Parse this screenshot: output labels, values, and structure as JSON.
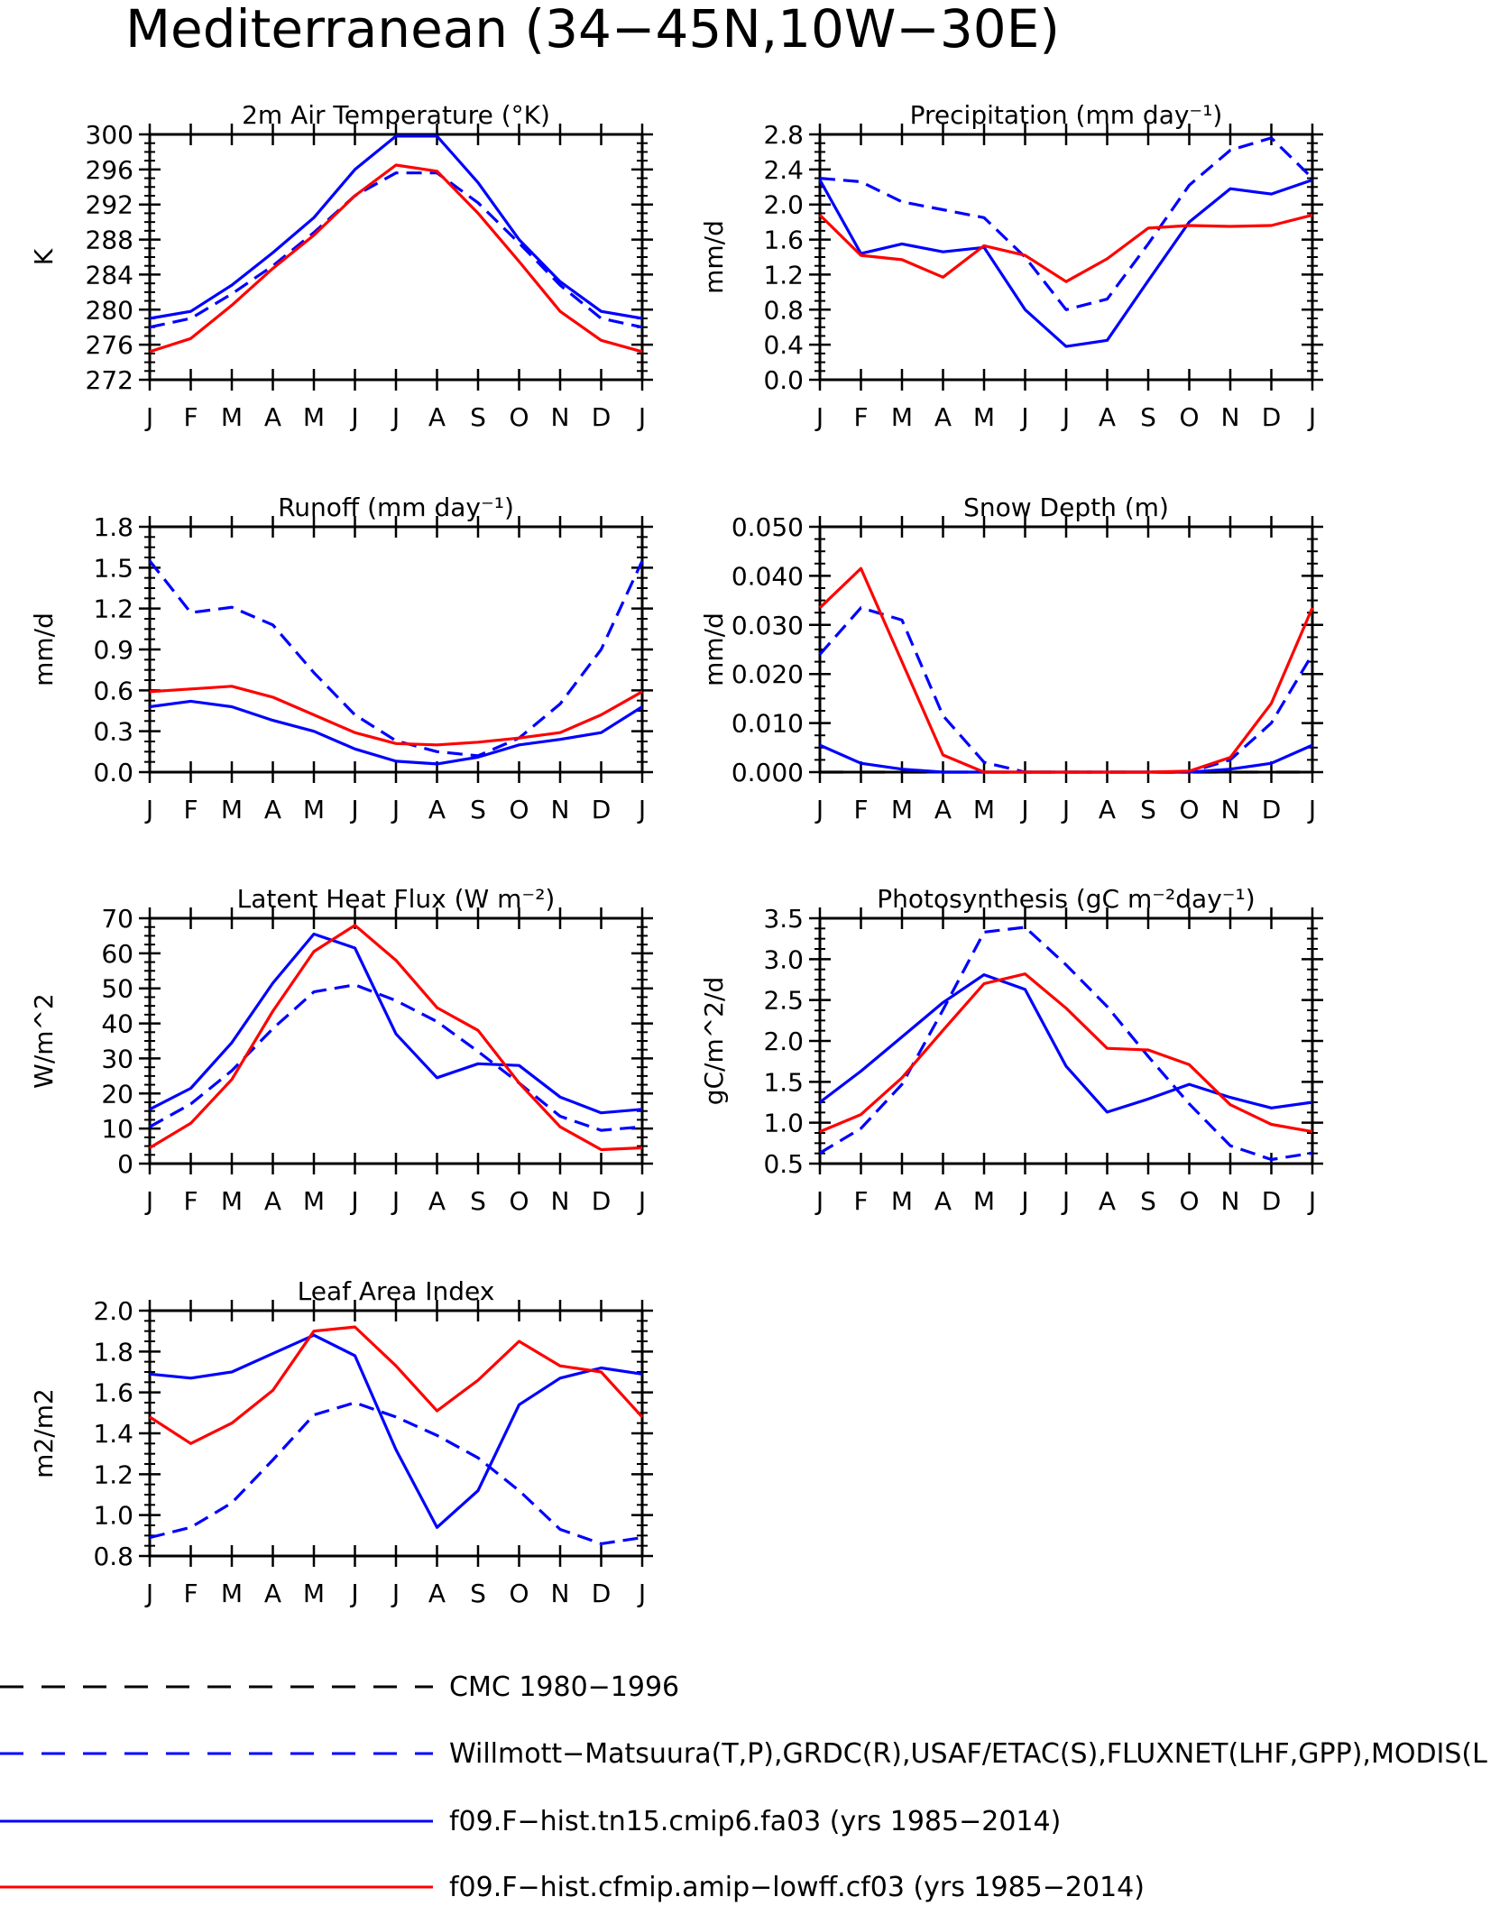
{
  "figure": {
    "title": "Mediterranean (34−45N,10W−30E)",
    "months": [
      "J",
      "F",
      "M",
      "A",
      "M",
      "J",
      "J",
      "A",
      "S",
      "O",
      "N",
      "D",
      "J"
    ]
  },
  "legend": {
    "entries": [
      {
        "label": "CMC 1980−1996",
        "color": "#000000",
        "style": "longdash"
      },
      {
        "label": "Willmott−Matsuura(T,P),GRDC(R),USAF/ETAC(S),FLUXNET(LHF,GPP),MODIS(L",
        "color": "#0000ff",
        "style": "longdash"
      },
      {
        "label": "f09.F−hist.tn15.cmip6.fa03 (yrs 1985−2014)",
        "color": "#0000ff",
        "style": "solid"
      },
      {
        "label": "f09.F−hist.cfmip.amip−lowff.cf03 (yrs 1985−2014)",
        "color": "#ff0000",
        "style": "solid"
      }
    ]
  },
  "chart_data": [
    {
      "type": "line",
      "title": "2m Air Temperature (°K)",
      "ylabel": "K",
      "ylim": [
        272,
        300
      ],
      "yticks": [
        "272",
        "276",
        "280",
        "284",
        "288",
        "292",
        "296",
        "300"
      ],
      "series": [
        {
          "color": "#0000ff",
          "style": "dash",
          "values": [
            278.0,
            279.0,
            281.8,
            285.0,
            288.8,
            293.0,
            295.6,
            295.6,
            292.2,
            287.6,
            282.8,
            279.0,
            278.0
          ]
        },
        {
          "color": "#0000ff",
          "style": "solid",
          "values": [
            279.0,
            279.8,
            282.8,
            286.5,
            290.5,
            296.0,
            299.8,
            299.8,
            294.5,
            288.0,
            283.2,
            279.8,
            279.0
          ]
        },
        {
          "color": "#ff0000",
          "style": "solid",
          "values": [
            275.2,
            276.7,
            280.5,
            284.7,
            288.5,
            293.0,
            296.5,
            295.8,
            291.0,
            285.5,
            279.8,
            276.5,
            275.2
          ]
        }
      ]
    },
    {
      "type": "line",
      "title": "Precipitation (mm day⁻¹)",
      "ylabel": "mm/d",
      "ylim": [
        0,
        2.8
      ],
      "yticks": [
        "0.0",
        "0.4",
        "0.8",
        "1.2",
        "1.6",
        "2.0",
        "2.4",
        "2.8"
      ],
      "series": [
        {
          "color": "#0000ff",
          "style": "dash",
          "values": [
            2.3,
            2.26,
            2.03,
            1.94,
            1.85,
            1.4,
            0.8,
            0.92,
            1.55,
            2.22,
            2.62,
            2.76,
            2.3
          ]
        },
        {
          "color": "#0000ff",
          "style": "solid",
          "values": [
            2.28,
            1.44,
            1.55,
            1.46,
            1.51,
            0.8,
            0.38,
            0.45,
            1.13,
            1.8,
            2.18,
            2.12,
            2.28
          ]
        },
        {
          "color": "#ff0000",
          "style": "solid",
          "values": [
            1.88,
            1.42,
            1.37,
            1.17,
            1.53,
            1.42,
            1.12,
            1.38,
            1.73,
            1.76,
            1.75,
            1.76,
            1.88
          ]
        }
      ]
    },
    {
      "type": "line",
      "title": "Runoff (mm day⁻¹)",
      "ylabel": "mm/d",
      "ylim": [
        0,
        1.8
      ],
      "yticks": [
        "0.0",
        "0.3",
        "0.6",
        "0.9",
        "1.2",
        "1.5",
        "1.8"
      ],
      "series": [
        {
          "color": "#0000ff",
          "style": "dash",
          "values": [
            1.55,
            1.17,
            1.21,
            1.08,
            0.73,
            0.42,
            0.23,
            0.15,
            0.12,
            0.25,
            0.5,
            0.9,
            1.55
          ]
        },
        {
          "color": "#0000ff",
          "style": "solid",
          "values": [
            0.48,
            0.52,
            0.48,
            0.38,
            0.3,
            0.17,
            0.08,
            0.06,
            0.11,
            0.2,
            0.24,
            0.29,
            0.48
          ]
        },
        {
          "color": "#ff0000",
          "style": "solid",
          "values": [
            0.59,
            0.61,
            0.63,
            0.55,
            0.42,
            0.29,
            0.21,
            0.2,
            0.22,
            0.25,
            0.29,
            0.42,
            0.59
          ]
        }
      ]
    },
    {
      "type": "line",
      "title": "Snow Depth (m)",
      "ylabel": "mm/d",
      "ylim": [
        0,
        0.05
      ],
      "yticks": [
        "0.000",
        "0.010",
        "0.020",
        "0.030",
        "0.040",
        "0.050"
      ],
      "series": [
        {
          "color": "#000000",
          "style": "longdash",
          "values": [
            0,
            0,
            0,
            0,
            0,
            0,
            0,
            0,
            0,
            0,
            0,
            0,
            0
          ]
        },
        {
          "color": "#0000ff",
          "style": "dash",
          "values": [
            0.024,
            0.0335,
            0.031,
            0.0115,
            0.002,
            0,
            0,
            0,
            0,
            0,
            0.0025,
            0.01,
            0.024
          ]
        },
        {
          "color": "#0000ff",
          "style": "solid",
          "values": [
            0.0055,
            0.0018,
            0.0006,
            0,
            0,
            0,
            0,
            0,
            0,
            0,
            0.0006,
            0.0018,
            0.0055
          ]
        },
        {
          "color": "#ff0000",
          "style": "solid",
          "values": [
            0.0335,
            0.0415,
            0.0225,
            0.0035,
            0,
            0,
            0,
            0,
            0,
            0.0002,
            0.003,
            0.014,
            0.0335
          ]
        }
      ]
    },
    {
      "type": "line",
      "title": "Latent Heat Flux (W m⁻²)",
      "ylabel": "W/m^2",
      "ylim": [
        0,
        70
      ],
      "yticks": [
        "0",
        "10",
        "20",
        "30",
        "40",
        "50",
        "60",
        "70"
      ],
      "series": [
        {
          "color": "#0000ff",
          "style": "dash",
          "values": [
            10.5,
            17.0,
            26.5,
            38.5,
            49.0,
            51.0,
            46.5,
            40.5,
            32.0,
            23.0,
            13.5,
            9.5,
            10.5
          ]
        },
        {
          "color": "#0000ff",
          "style": "solid",
          "values": [
            15.5,
            21.5,
            34.5,
            51.5,
            65.5,
            61.5,
            37.0,
            24.5,
            28.5,
            28.0,
            19.0,
            14.5,
            15.5
          ]
        },
        {
          "color": "#ff0000",
          "style": "solid",
          "values": [
            4.5,
            11.5,
            24.0,
            43.5,
            60.5,
            68.0,
            58.0,
            44.5,
            38.0,
            23.0,
            10.5,
            4.0,
            4.5
          ]
        }
      ]
    },
    {
      "type": "line",
      "title": "Photosynthesis (gC m⁻²day⁻¹)",
      "ylabel": "gC/m^2/d",
      "ylim": [
        0.5,
        3.5
      ],
      "yticks": [
        "0.5",
        "1.0",
        "1.5",
        "2.0",
        "2.5",
        "3.0",
        "3.5"
      ],
      "series": [
        {
          "color": "#0000ff",
          "style": "dash",
          "values": [
            0.63,
            0.93,
            1.47,
            2.38,
            3.33,
            3.39,
            2.93,
            2.42,
            1.81,
            1.23,
            0.72,
            0.55,
            0.63
          ]
        },
        {
          "color": "#0000ff",
          "style": "solid",
          "values": [
            1.25,
            1.63,
            2.05,
            2.47,
            2.81,
            2.63,
            1.69,
            1.13,
            1.29,
            1.47,
            1.31,
            1.18,
            1.25
          ]
        },
        {
          "color": "#ff0000",
          "style": "solid",
          "values": [
            0.89,
            1.1,
            1.55,
            2.13,
            2.7,
            2.82,
            2.4,
            1.91,
            1.89,
            1.71,
            1.22,
            0.98,
            0.89
          ]
        }
      ]
    },
    {
      "type": "line",
      "title": "Leaf Area Index",
      "ylabel": "m2/m2",
      "ylim": [
        0.8,
        2.0
      ],
      "yticks": [
        "0.8",
        "1.0",
        "1.2",
        "1.4",
        "1.6",
        "1.8",
        "2.0"
      ],
      "series": [
        {
          "color": "#0000ff",
          "style": "dash",
          "values": [
            0.89,
            0.94,
            1.06,
            1.27,
            1.49,
            1.55,
            1.48,
            1.39,
            1.28,
            1.12,
            0.93,
            0.86,
            0.89
          ]
        },
        {
          "color": "#0000ff",
          "style": "solid",
          "values": [
            1.69,
            1.67,
            1.7,
            1.79,
            1.88,
            1.78,
            1.32,
            0.94,
            1.12,
            1.54,
            1.67,
            1.72,
            1.69
          ]
        },
        {
          "color": "#ff0000",
          "style": "solid",
          "values": [
            1.48,
            1.35,
            1.45,
            1.61,
            1.9,
            1.92,
            1.73,
            1.51,
            1.66,
            1.85,
            1.73,
            1.7,
            1.48
          ]
        }
      ]
    }
  ]
}
